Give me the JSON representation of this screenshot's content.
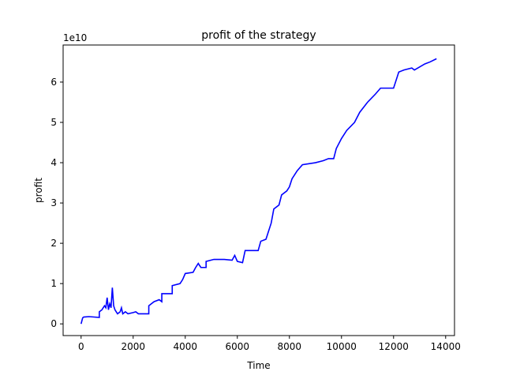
{
  "chart_data": {
    "type": "line",
    "title": "profit of the strategy",
    "x_label": "Time",
    "y_label": "profit",
    "y_offset_label": "1e10",
    "x": [
      0,
      60,
      100,
      300,
      700,
      700,
      800,
      900,
      950,
      1000,
      1050,
      1100,
      1150,
      1200,
      1250,
      1300,
      1350,
      1400,
      1500,
      1550,
      1600,
      1700,
      1800,
      2000,
      2100,
      2200,
      2600,
      2600,
      2800,
      3000,
      3100,
      3100,
      3500,
      3500,
      3800,
      3900,
      4000,
      4300,
      4400,
      4500,
      4600,
      4800,
      4800,
      5100,
      5500,
      5800,
      5900,
      6000,
      6200,
      6300,
      6800,
      6900,
      7100,
      7200,
      7300,
      7400,
      7600,
      7700,
      7900,
      8000,
      8100,
      8300,
      8500,
      9000,
      9300,
      9500,
      9700,
      9800,
      10000,
      10200,
      10500,
      10700,
      11000,
      11300,
      11500,
      12000,
      12200,
      12400,
      12700,
      12800,
      13200,
      13400,
      13650
    ],
    "series": [
      {
        "name": "profit",
        "color": "#0000ff",
        "values": [
          0,
          0.15,
          0.17,
          0.18,
          0.16,
          0.3,
          0.35,
          0.45,
          0.4,
          0.65,
          0.35,
          0.5,
          0.4,
          0.9,
          0.45,
          0.35,
          0.3,
          0.25,
          0.3,
          0.4,
          0.25,
          0.3,
          0.25,
          0.28,
          0.3,
          0.25,
          0.25,
          0.45,
          0.55,
          0.6,
          0.55,
          0.75,
          0.75,
          0.95,
          1.0,
          1.1,
          1.25,
          1.28,
          1.4,
          1.5,
          1.4,
          1.4,
          1.55,
          1.6,
          1.6,
          1.58,
          1.7,
          1.55,
          1.52,
          1.82,
          1.82,
          2.05,
          2.1,
          2.3,
          2.5,
          2.85,
          2.95,
          3.2,
          3.3,
          3.4,
          3.6,
          3.8,
          3.95,
          4.0,
          4.05,
          4.1,
          4.1,
          4.35,
          4.6,
          4.8,
          5.0,
          5.25,
          5.5,
          5.7,
          5.85,
          5.85,
          6.25,
          6.3,
          6.35,
          6.3,
          6.45,
          6.5,
          6.58
        ]
      }
    ],
    "xlim": [
      -690,
      14340
    ],
    "ylim": [
      -0.29,
      6.92
    ],
    "xticks": [
      0,
      2000,
      4000,
      6000,
      8000,
      10000,
      12000,
      14000
    ],
    "yticks": [
      0,
      1,
      2,
      3,
      4,
      5,
      6
    ]
  }
}
